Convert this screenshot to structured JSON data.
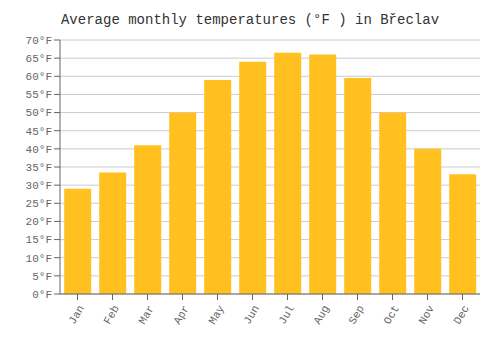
{
  "chart_data": {
    "type": "bar",
    "title": "Average monthly temperatures (°F ) in Břeclav",
    "categories": [
      "Jan",
      "Feb",
      "Mar",
      "Apr",
      "May",
      "Jun",
      "Jul",
      "Aug",
      "Sep",
      "Oct",
      "Nov",
      "Dec"
    ],
    "values": [
      29,
      33.5,
      41,
      50,
      59,
      64,
      66.5,
      66,
      59.5,
      50,
      40,
      33
    ],
    "color": "#FFC020",
    "ylim": [
      0,
      70
    ],
    "yticks": [
      {
        "value": 0,
        "label": "0°F"
      },
      {
        "value": 5,
        "label": "5°F"
      },
      {
        "value": 10,
        "label": "10°F"
      },
      {
        "value": 15,
        "label": "15°F"
      },
      {
        "value": 20,
        "label": "20°F"
      },
      {
        "value": 25,
        "label": "25°F"
      },
      {
        "value": 30,
        "label": "30°F"
      },
      {
        "value": 35,
        "label": "35°F"
      },
      {
        "value": 40,
        "label": "40°F"
      },
      {
        "value": 45,
        "label": "45°F"
      },
      {
        "value": 50,
        "label": "50°F"
      },
      {
        "value": 55,
        "label": "55°F"
      },
      {
        "value": 60,
        "label": "60°F"
      },
      {
        "value": 65,
        "label": "65°F"
      },
      {
        "value": 70,
        "label": "70°F"
      }
    ],
    "grid": true
  }
}
